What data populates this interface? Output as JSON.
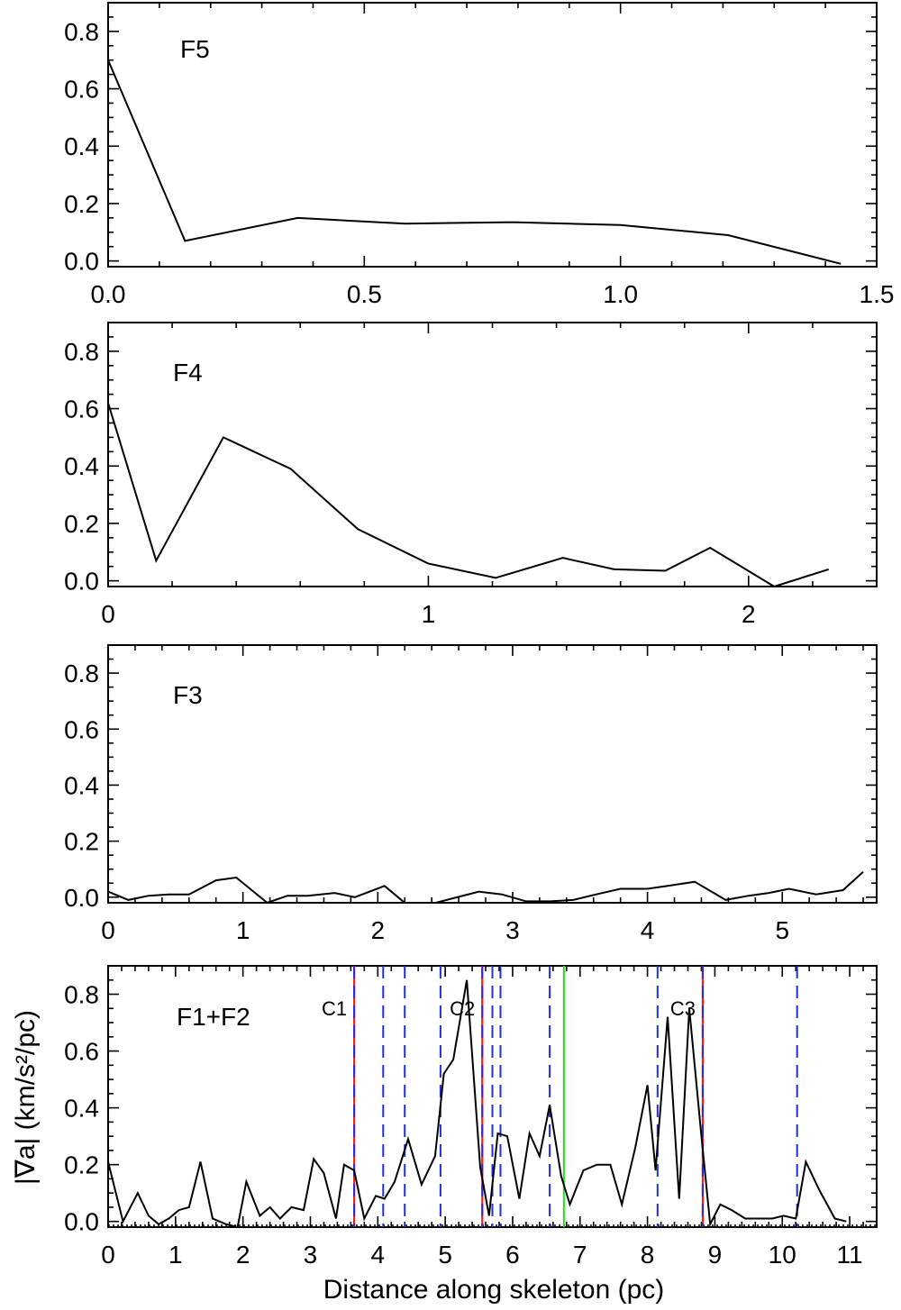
{
  "chart_data": [
    {
      "type": "line",
      "panel": "F5",
      "label": "F5",
      "xlim": [
        0,
        1.5
      ],
      "ylim": [
        -0.02,
        0.9
      ],
      "xticks": [
        "0.0",
        "0.5",
        "1.0",
        "1.5"
      ],
      "yticks": [
        "0.0",
        "0.2",
        "0.4",
        "0.6",
        "0.8"
      ],
      "x": [
        0,
        0.15,
        0.37,
        0.58,
        0.79,
        1.0,
        1.21,
        1.43
      ],
      "y": [
        0.7,
        0.07,
        0.15,
        0.13,
        0.135,
        0.125,
        0.09,
        -0.01
      ]
    },
    {
      "type": "line",
      "panel": "F4",
      "label": "F4",
      "xlim": [
        0,
        2.4
      ],
      "ylim": [
        -0.02,
        0.9
      ],
      "xticks": [
        "0",
        "1",
        "2"
      ],
      "yticks": [
        "0.0",
        "0.2",
        "0.4",
        "0.6",
        "0.8"
      ],
      "x": [
        0,
        0.15,
        0.36,
        0.57,
        0.78,
        1.0,
        1.21,
        1.42,
        1.58,
        1.74,
        1.88,
        2.08,
        2.25
      ],
      "y": [
        0.62,
        0.07,
        0.5,
        0.39,
        0.18,
        0.06,
        0.01,
        0.08,
        0.04,
        0.035,
        0.115,
        -0.02,
        0.04
      ]
    },
    {
      "type": "line",
      "panel": "F3",
      "label": "F3",
      "xlim": [
        0,
        5.7
      ],
      "ylim": [
        -0.02,
        0.9
      ],
      "xticks": [
        "0",
        "1",
        "2",
        "3",
        "4",
        "5"
      ],
      "yticks": [
        "0.0",
        "0.2",
        "0.4",
        "0.6",
        "0.8"
      ],
      "x": [
        0,
        0.15,
        0.3,
        0.45,
        0.6,
        0.8,
        0.95,
        1.18,
        1.33,
        1.48,
        1.68,
        1.83,
        2.05,
        2.2,
        2.43,
        2.75,
        2.92,
        3.1,
        3.28,
        3.45,
        3.62,
        3.8,
        4.0,
        4.15,
        4.35,
        4.58,
        4.75,
        4.9,
        5.05,
        5.25,
        5.45,
        5.6
      ],
      "y": [
        0.02,
        -0.01,
        0.005,
        0.01,
        0.01,
        0.06,
        0.07,
        -0.02,
        0.005,
        0.005,
        0.015,
        0.0,
        0.04,
        -0.02,
        -0.02,
        0.02,
        0.01,
        -0.015,
        -0.015,
        -0.01,
        0.01,
        0.03,
        0.03,
        0.04,
        0.055,
        -0.01,
        0.005,
        0.015,
        0.03,
        0.01,
        0.025,
        0.09
      ]
    },
    {
      "type": "line",
      "panel": "F1+F2",
      "label": "F1+F2",
      "xlim": [
        0,
        11.4
      ],
      "ylim": [
        -0.02,
        0.9
      ],
      "xticks": [
        "0",
        "1",
        "2",
        "3",
        "4",
        "5",
        "6",
        "7",
        "8",
        "9",
        "10",
        "11"
      ],
      "yticks": [
        "0.0",
        "0.2",
        "0.4",
        "0.6",
        "0.8"
      ],
      "xlabel": "Distance along skeleton (pc)",
      "ylabel": "|∇a| (km/s²/pc)",
      "x": [
        0,
        0.22,
        0.44,
        0.6,
        0.75,
        0.9,
        1.05,
        1.2,
        1.37,
        1.55,
        1.75,
        1.92,
        2.05,
        2.25,
        2.4,
        2.55,
        2.72,
        2.9,
        3.05,
        3.2,
        3.38,
        3.5,
        3.65,
        3.8,
        3.97,
        4.1,
        4.25,
        4.45,
        4.65,
        4.85,
        4.98,
        5.12,
        5.32,
        5.52,
        5.65,
        5.78,
        5.92,
        6.1,
        6.25,
        6.4,
        6.55,
        6.72,
        6.85,
        7.05,
        7.25,
        7.45,
        7.62,
        7.82,
        8.0,
        8.12,
        8.3,
        8.47,
        8.62,
        8.8,
        8.93,
        9.08,
        9.25,
        9.45,
        9.65,
        9.85,
        10.02,
        10.2,
        10.35,
        10.55,
        10.78,
        10.95
      ],
      "y": [
        0.21,
        0.0,
        0.1,
        0.02,
        -0.01,
        0.01,
        0.04,
        0.05,
        0.21,
        0.01,
        -0.01,
        -0.02,
        0.14,
        0.02,
        0.05,
        0.01,
        0.05,
        0.04,
        0.22,
        0.17,
        0.01,
        0.2,
        0.18,
        0.01,
        0.09,
        0.08,
        0.14,
        0.29,
        0.13,
        0.23,
        0.52,
        0.57,
        0.85,
        0.19,
        0.02,
        0.31,
        0.3,
        0.08,
        0.31,
        0.23,
        0.41,
        0.16,
        0.06,
        0.18,
        0.2,
        0.2,
        0.06,
        0.26,
        0.48,
        0.18,
        0.72,
        0.08,
        0.75,
        0.3,
        -0.01,
        0.06,
        0.04,
        0.01,
        0.01,
        0.01,
        0.02,
        0.01,
        0.21,
        0.11,
        0.01,
        0.0
      ],
      "markers": [
        {
          "x": 3.65,
          "style": "red-blue-dashed",
          "label": "C1"
        },
        {
          "x": 4.08,
          "style": "blue-dashed"
        },
        {
          "x": 4.4,
          "style": "blue-dashed"
        },
        {
          "x": 4.93,
          "style": "blue-dashed"
        },
        {
          "x": 5.55,
          "style": "red-blue-dashed",
          "label": "C2"
        },
        {
          "x": 5.7,
          "style": "blue-dashed"
        },
        {
          "x": 5.82,
          "style": "blue-dashed"
        },
        {
          "x": 6.55,
          "style": "blue-dashed"
        },
        {
          "x": 6.76,
          "style": "green-solid"
        },
        {
          "x": 8.15,
          "style": "blue-dashed"
        },
        {
          "x": 8.82,
          "style": "red-blue-dashed",
          "label": "C3"
        },
        {
          "x": 10.22,
          "style": "blue-dashed"
        }
      ]
    }
  ],
  "colors": {
    "line": "#000000",
    "red_marker": "#e8241e",
    "blue_marker": "#1f2fdc",
    "green_marker": "#22dd22"
  }
}
